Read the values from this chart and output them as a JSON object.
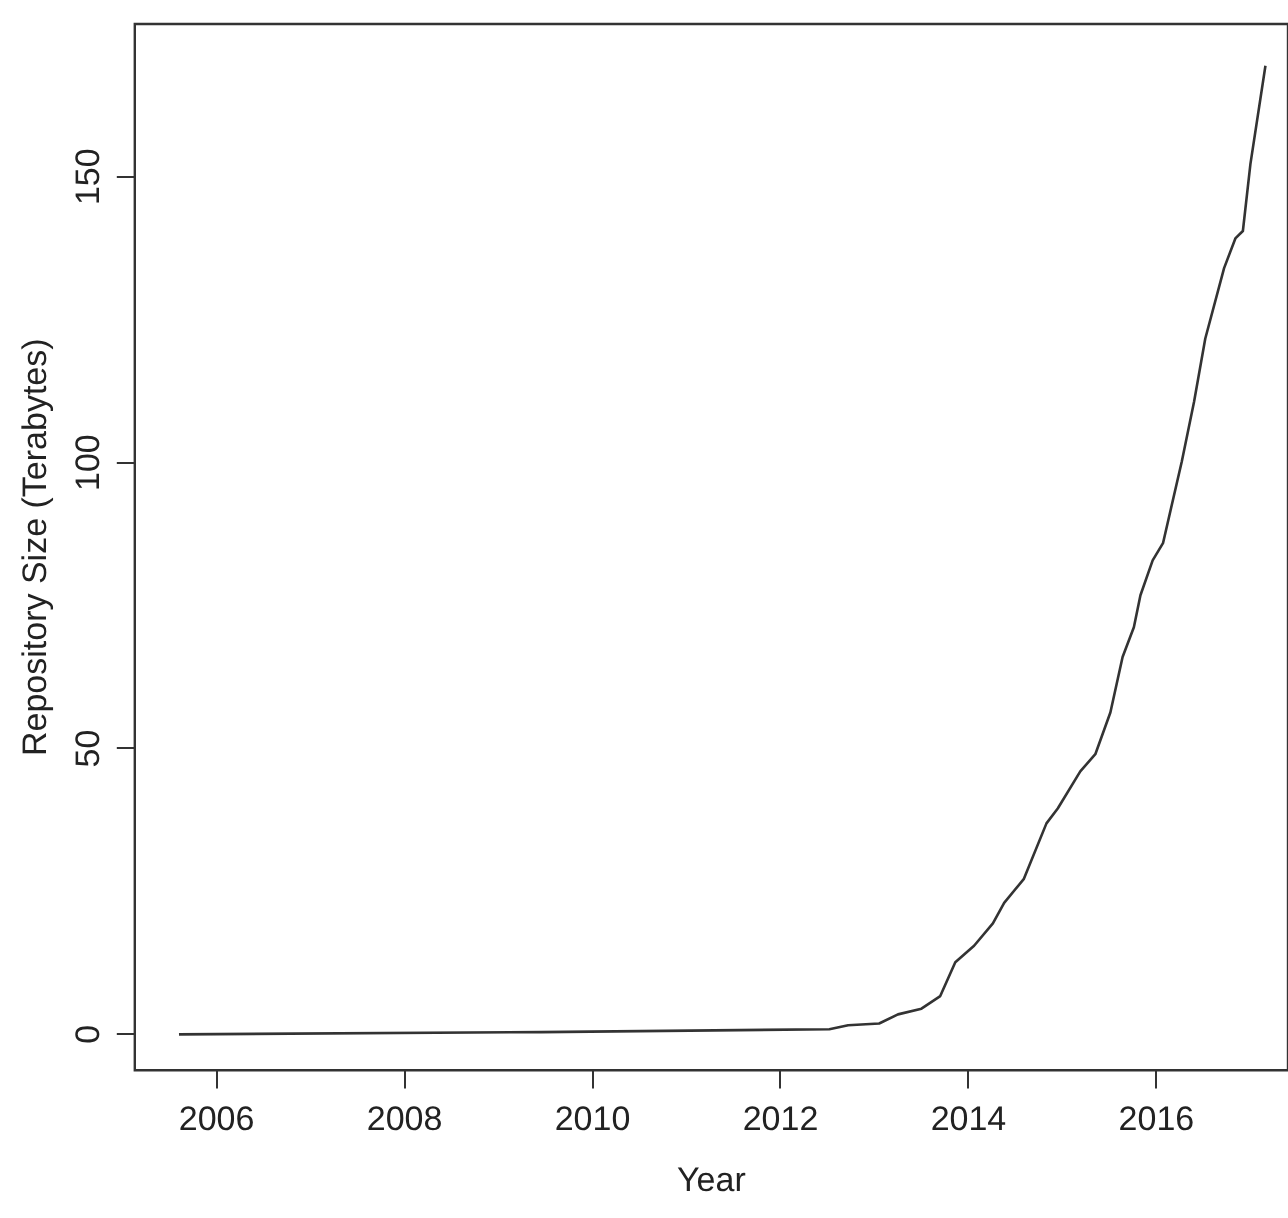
{
  "chart_data": {
    "type": "line",
    "xlabel": "Year",
    "ylabel": "Repository Size (Terabytes)",
    "xlim": [
      2005.13,
      2017.4
    ],
    "ylim": [
      -6.3,
      176.7
    ],
    "xticks": [
      2006,
      2008,
      2010,
      2012,
      2014,
      2016
    ],
    "yticks": [
      0,
      50,
      100,
      150
    ],
    "grid": false,
    "legend": false,
    "marker": "none",
    "line_style": "solid",
    "series": [
      {
        "color": "#333333",
        "x": [
          2005.6,
          2009.45,
          2012.52,
          2012.72,
          2013.05,
          2013.25,
          2013.5,
          2013.7,
          2013.86,
          2014.06,
          2014.26,
          2014.38,
          2014.59,
          2014.83,
          2014.95,
          2015.19,
          2015.35,
          2015.51,
          2015.64,
          2015.76,
          2015.83,
          2015.96,
          2016.07,
          2016.27,
          2016.4,
          2016.52,
          2016.72,
          2016.84,
          2016.92,
          2017.0,
          2017.16
        ],
        "values": [
          0,
          0.4,
          0.9,
          1.6,
          1.9,
          3.5,
          4.5,
          6.7,
          12.6,
          15.5,
          19.4,
          23,
          27.2,
          36.9,
          39.5,
          46,
          49,
          56.3,
          66,
          71.2,
          76.8,
          82.9,
          85.9,
          100.2,
          110.6,
          121.7,
          134,
          139.2,
          140.5,
          152.2,
          169.4
        ]
      }
    ]
  }
}
